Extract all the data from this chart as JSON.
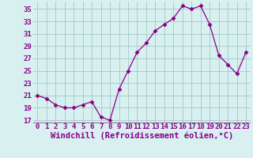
{
  "x": [
    0,
    1,
    2,
    3,
    4,
    5,
    6,
    7,
    8,
    9,
    10,
    11,
    12,
    13,
    14,
    15,
    16,
    17,
    18,
    19,
    20,
    21,
    22,
    23
  ],
  "y": [
    21.0,
    20.5,
    19.5,
    19.0,
    19.0,
    19.5,
    20.0,
    17.5,
    17.0,
    22.0,
    25.0,
    28.0,
    29.5,
    31.5,
    32.5,
    33.5,
    35.5,
    35.0,
    35.5,
    32.5,
    27.5,
    26.0,
    24.5,
    28.0
  ],
  "line_color": "#880088",
  "marker": "D",
  "marker_size": 2.5,
  "xlabel": "Windchill (Refroidissement éolien,°C)",
  "xlim": [
    -0.5,
    23.5
  ],
  "ylim": [
    16.5,
    36.2
  ],
  "yticks": [
    17,
    19,
    21,
    23,
    25,
    27,
    29,
    31,
    33,
    35
  ],
  "xticks": [
    0,
    1,
    2,
    3,
    4,
    5,
    6,
    7,
    8,
    9,
    10,
    11,
    12,
    13,
    14,
    15,
    16,
    17,
    18,
    19,
    20,
    21,
    22,
    23
  ],
  "bg_color": "#d8f0f0",
  "grid_color": "#aacccc",
  "xaxis_bar_color": "#9966aa",
  "tick_label_color": "#880088",
  "xlabel_color": "#880088",
  "xlabel_fontsize": 7.5,
  "tick_fontsize": 6.5
}
